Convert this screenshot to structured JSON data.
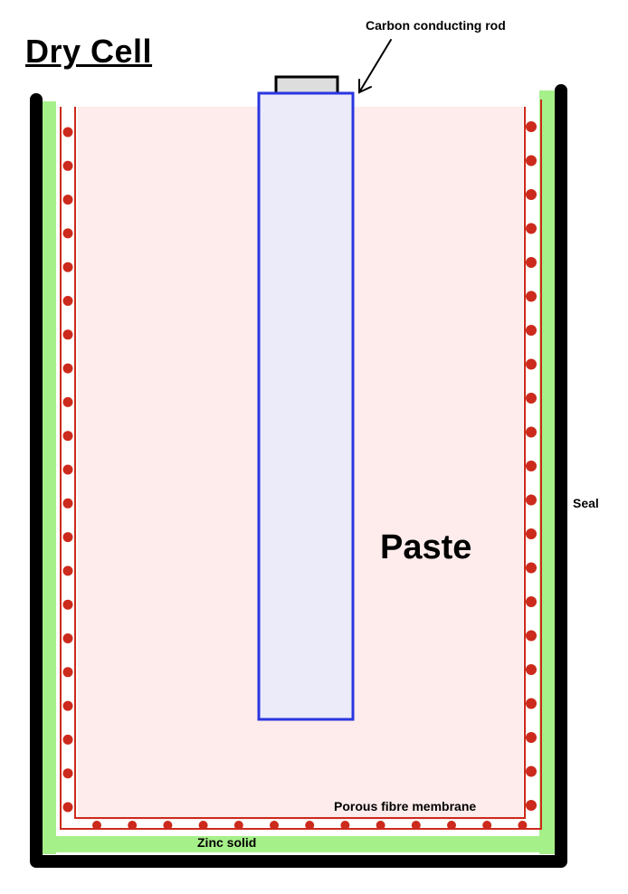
{
  "title": "Dry Cell",
  "labels": {
    "carbon_rod": "Carbon conducting rod",
    "seal": "Seal",
    "paste": "Paste",
    "membrane": "Porous fibre membrane",
    "zinc": "Zinc solid"
  },
  "colors": {
    "outer_casing": "#000000",
    "zinc_layer": "#a6f08a",
    "membrane": "#cc2a1c",
    "paste_fill": "#fdeceb",
    "rod_fill": "#ebebfa",
    "rod_border": "#2a36e0",
    "cap_fill": "#dddddd"
  }
}
